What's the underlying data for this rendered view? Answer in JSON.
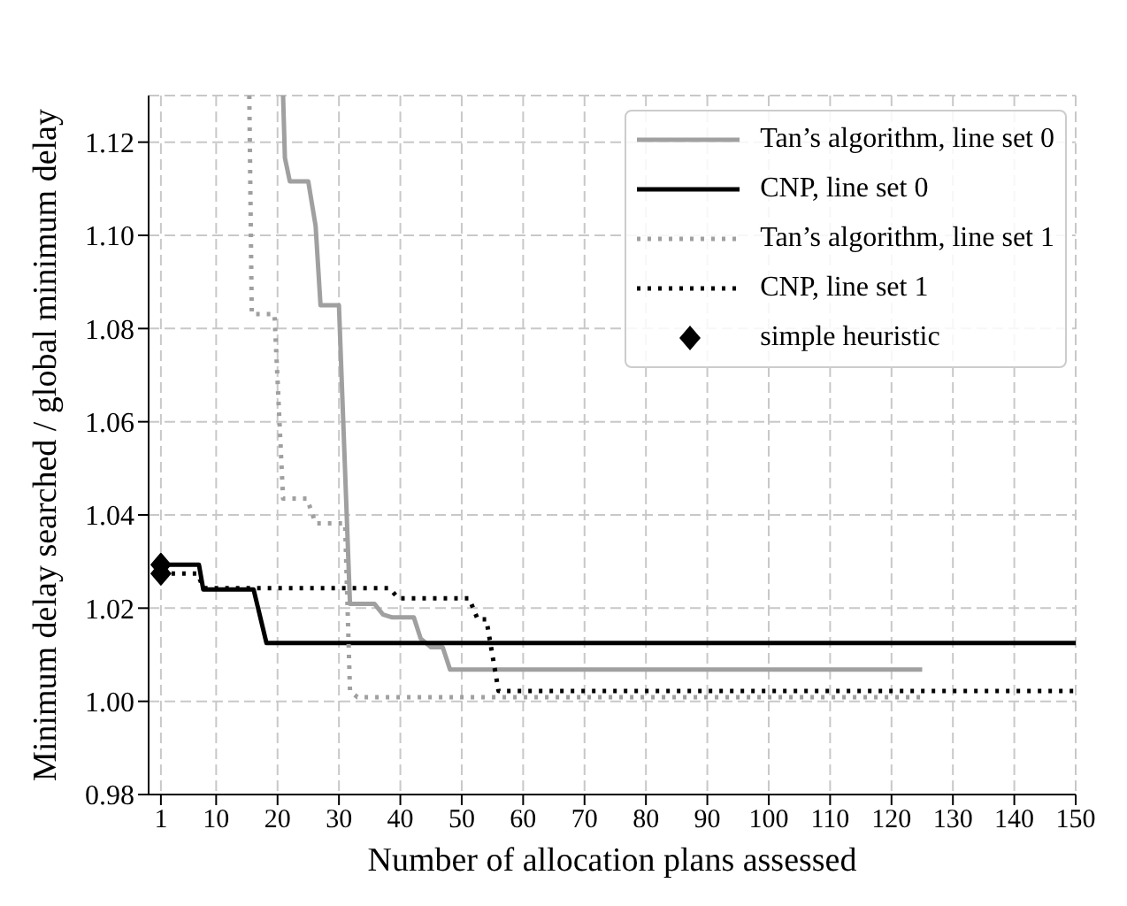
{
  "chart_data": {
    "type": "line",
    "xlabel": "Number of allocation plans assessed",
    "ylabel": "Minimum delay searched / global minimum delay",
    "xlim": [
      -1,
      150
    ],
    "xticks": [
      1,
      10,
      20,
      30,
      40,
      50,
      60,
      70,
      80,
      90,
      100,
      110,
      120,
      130,
      140,
      150
    ],
    "ylim": [
      0.98,
      1.13
    ],
    "yticks": [
      {
        "value": 0.98,
        "label": "0.98"
      },
      {
        "value": 1.0,
        "label": "1.00"
      },
      {
        "value": 1.02,
        "label": "1.02"
      },
      {
        "value": 1.04,
        "label": "1.04"
      },
      {
        "value": 1.06,
        "label": "1.06"
      },
      {
        "value": 1.08,
        "label": "1.08"
      },
      {
        "value": 1.1,
        "label": "1.10"
      },
      {
        "value": 1.12,
        "label": "1.12"
      }
    ],
    "grid": true,
    "legend": "top right",
    "series": [
      {
        "name": "Tan’s algorithm, line set 0",
        "color": "#a0a0a0",
        "line_style": "solid",
        "x": [
          20.9,
          21.2,
          22,
          25,
          26.2,
          27,
          30,
          31.8,
          35.8,
          37.2,
          38.7,
          42.2,
          43.3,
          45,
          46.9,
          48.1,
          125
        ],
        "values": [
          1.13,
          1.1166,
          1.1116,
          1.1116,
          1.102,
          1.085,
          1.085,
          1.0209,
          1.0209,
          1.0186,
          1.018,
          1.018,
          1.0135,
          1.0116,
          1.0116,
          1.0068,
          1.0068
        ]
      },
      {
        "name": "CNP, line set 0",
        "color": "#000000",
        "line_style": "solid",
        "x": [
          1,
          7.2,
          7.9,
          16.1,
          18.2,
          150
        ],
        "values": [
          1.0293,
          1.0293,
          1.024,
          1.024,
          1.0125,
          1.0125
        ]
      },
      {
        "name": "Tan’s algorithm, line set 1",
        "color": "#a0a0a0",
        "line_style": "dotted",
        "x": [
          15.4,
          15.8,
          19.5,
          20.9,
          24.8,
          26.2,
          31,
          31.8,
          33,
          125
        ],
        "values": [
          1.13,
          1.0831,
          1.0831,
          1.0435,
          1.0435,
          1.0382,
          1.0382,
          1.0022,
          1.0009,
          1.0009
        ]
      },
      {
        "name": "CNP, line set 1",
        "color": "#000000",
        "line_style": "dotted",
        "x": [
          1,
          7,
          7.9,
          38.2,
          39.7,
          51.2,
          52.6,
          54,
          56,
          150
        ],
        "values": [
          1.0274,
          1.0274,
          1.0243,
          1.0243,
          1.0221,
          1.0221,
          1.0176,
          1.0176,
          1.0022,
          1.0022
        ]
      },
      {
        "name": "simple heuristic",
        "type": "scatter",
        "marker": "diamond",
        "color": "#000000",
        "x": [
          1,
          1
        ],
        "values": [
          1.0293,
          1.0274
        ]
      }
    ]
  }
}
